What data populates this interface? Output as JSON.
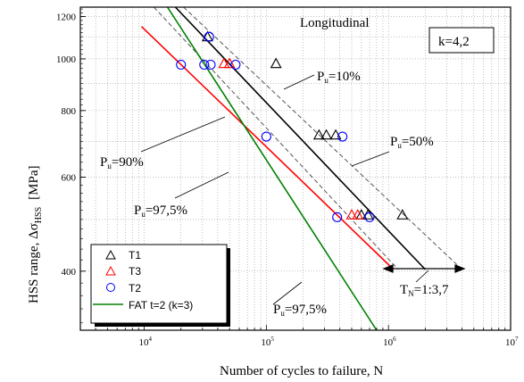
{
  "chart_data": {
    "type": "scatter",
    "xscale": "log",
    "yscale": "log",
    "xlim": [
      3000,
      10000000
    ],
    "ylim": [
      310,
      1250
    ],
    "xlabel": "Number of cycles to failure, N",
    "ylabel_main": "HSS range, Δσ",
    "ylabel_sub": "HSS",
    "ylabel_unit": "[MPa]",
    "x_ticks": [
      {
        "value": 10000,
        "base": "10",
        "exp": "4"
      },
      {
        "value": 100000,
        "base": "10",
        "exp": "5"
      },
      {
        "value": 1000000,
        "base": "10",
        "exp": "6"
      },
      {
        "value": 10000000,
        "base": "10",
        "exp": "7"
      }
    ],
    "y_ticks": [
      {
        "value": 400,
        "label": "400"
      },
      {
        "value": 600,
        "label": "600"
      },
      {
        "value": 800,
        "label": "800"
      },
      {
        "value": 1000,
        "label": "1000"
      },
      {
        "value": 1200,
        "label": "1200"
      }
    ],
    "grid": true,
    "series": [
      {
        "name": "T1",
        "marker": "triangle",
        "color": "#000000",
        "points": [
          [
            33000,
            1100
          ],
          [
            120000,
            980
          ],
          [
            270000,
            720
          ],
          [
            310000,
            720
          ],
          [
            370000,
            720
          ],
          [
            600000,
            510
          ],
          [
            680000,
            510
          ],
          [
            1300000,
            510
          ]
        ]
      },
      {
        "name": "T3",
        "marker": "triangle",
        "color": "#ff0000",
        "points": [
          [
            45000,
            980
          ],
          [
            50000,
            980
          ],
          [
            500000,
            510
          ],
          [
            560000,
            510
          ]
        ]
      },
      {
        "name": "T2",
        "marker": "circle",
        "color": "#0000ff",
        "points": [
          [
            34000,
            1100
          ],
          [
            20000,
            975
          ],
          [
            31000,
            975
          ],
          [
            35000,
            975
          ],
          [
            56000,
            975
          ],
          [
            100000,
            715
          ],
          [
            420000,
            715
          ],
          [
            380000,
            505
          ],
          [
            700000,
            505
          ]
        ]
      },
      {
        "name": "FAT t=2 (k=3)",
        "marker": "none",
        "color": "#008000",
        "line": [
          [
            15500,
            1250
          ],
          [
            800000,
            310
          ]
        ]
      }
    ],
    "lines": [
      {
        "color": "#000000",
        "style": "solid",
        "width": 1.6,
        "points": [
          [
            18000,
            1250
          ],
          [
            2000000,
            403
          ]
        ]
      },
      {
        "color": "#ff0000",
        "style": "solid",
        "width": 1.6,
        "points": [
          [
            9500,
            1150
          ],
          [
            1100000,
            403
          ]
        ]
      },
      {
        "color": "#555555",
        "style": "dashed",
        "width": 1.0,
        "points": [
          [
            21000,
            1250
          ],
          [
            4000000,
            403
          ]
        ]
      },
      {
        "color": "#555555",
        "style": "dashed",
        "width": 1.0,
        "points": [
          [
            12000,
            1250
          ],
          [
            1200000,
            403
          ]
        ]
      }
    ],
    "legend_position": "bottom-left",
    "annotations": {
      "title": "Longitudinal",
      "k_label": "k=4,2",
      "p10": {
        "main": "P",
        "sub": "u",
        "rest": "=10%"
      },
      "p50": {
        "main": "P",
        "sub": "u",
        "rest": "=50%"
      },
      "p90": {
        "main": "P",
        "sub": "u",
        "rest": "=90%"
      },
      "p975a": {
        "main": "P",
        "sub": "u",
        "rest": "=97,5%"
      },
      "p975b": {
        "main": "P",
        "sub": "u",
        "rest": "=97,5%"
      },
      "tn": {
        "main": "T",
        "sub": "N",
        "rest": "=1:3,7"
      }
    }
  }
}
